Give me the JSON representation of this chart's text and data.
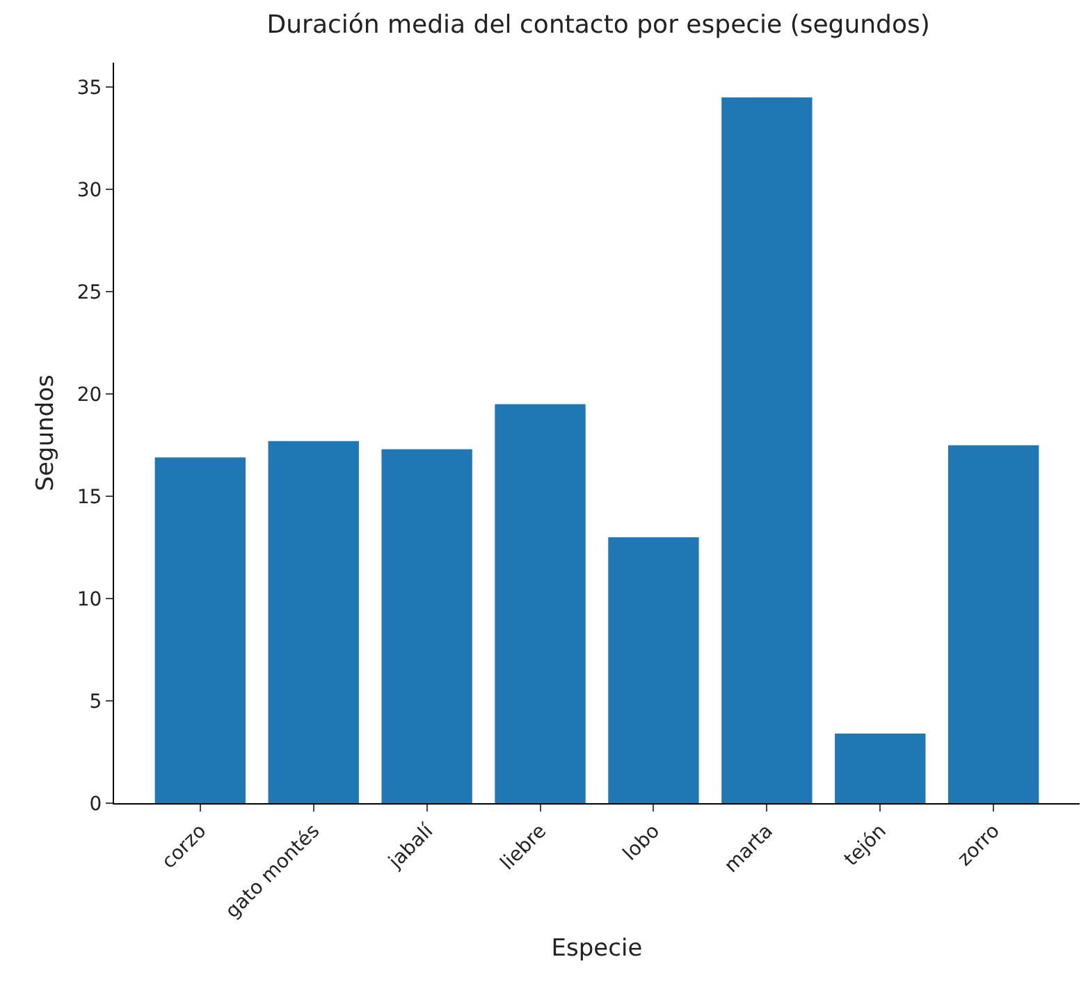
{
  "chart_data": {
    "type": "bar",
    "title": "Duración media del contacto por especie (segundos)",
    "xlabel": "Especie",
    "ylabel": "Segundos",
    "categories": [
      "corzo",
      "gato montés",
      "jabalí",
      "liebre",
      "lobo",
      "marta",
      "tejón",
      "zorro"
    ],
    "values": [
      16.9,
      17.7,
      17.3,
      19.5,
      13.0,
      34.5,
      3.4,
      17.5
    ],
    "color": "#1f77b4",
    "ylim": [
      0,
      36.2
    ],
    "yticks": [
      0,
      5,
      10,
      15,
      20,
      25,
      30,
      35
    ],
    "grid": false,
    "legend": false
  }
}
